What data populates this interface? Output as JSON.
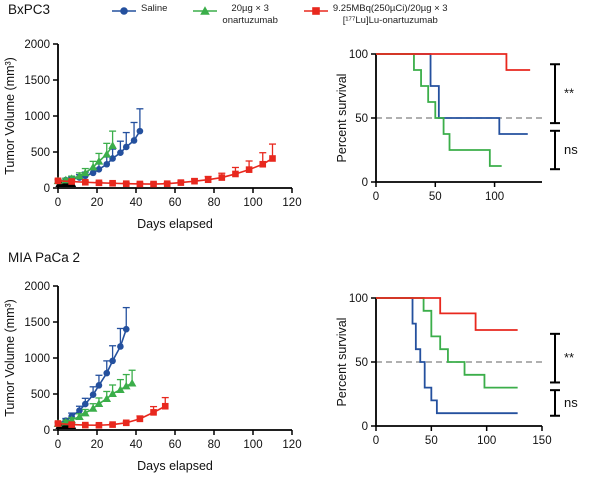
{
  "legend": {
    "items": [
      {
        "label": "Saline",
        "marker": "circle",
        "color": "#24509e"
      },
      {
        "label": "20µg × 3\nonartuzumab",
        "marker": "triangle",
        "color": "#3bae4a"
      },
      {
        "label": "9.25MBq(250µCi)/20µg × 3\n[¹⁷⁷Lu]Lu-onartuzumab",
        "marker": "square",
        "color": "#e8281e"
      }
    ]
  },
  "chart_data": [
    {
      "id": "bxpc3-tumor",
      "type": "line",
      "title": "BxPC3",
      "xlabel": "Days elapsed",
      "ylabel": "Tumor Volume (mm³)",
      "xlim": [
        0,
        120
      ],
      "ylim": [
        0,
        2000
      ],
      "xticks": [
        0,
        20,
        40,
        60,
        80,
        100,
        120
      ],
      "yticks": [
        0,
        500,
        1000,
        1500,
        2000
      ],
      "treatment_days": [
        1,
        4,
        7
      ],
      "series": [
        {
          "name": "Saline",
          "color": "#24509e",
          "marker": "circle",
          "x": [
            0,
            4,
            7,
            11,
            14,
            18,
            21,
            25,
            28,
            32,
            35,
            39,
            42
          ],
          "y": [
            100,
            110,
            125,
            145,
            170,
            210,
            260,
            330,
            410,
            490,
            570,
            660,
            790
          ],
          "err": [
            20,
            25,
            30,
            40,
            50,
            60,
            80,
            100,
            130,
            160,
            200,
            250,
            310
          ]
        },
        {
          "name": "Onartuzumab",
          "color": "#3bae4a",
          "marker": "triangle",
          "x": [
            0,
            4,
            7,
            11,
            14,
            18,
            21,
            25,
            28
          ],
          "y": [
            100,
            110,
            130,
            165,
            210,
            290,
            370,
            470,
            590
          ],
          "err": [
            20,
            25,
            35,
            45,
            60,
            80,
            110,
            150,
            200
          ]
        },
        {
          "name": "Lu-onartuzumab",
          "color": "#e8281e",
          "marker": "square",
          "x": [
            0,
            7,
            14,
            21,
            28,
            35,
            42,
            49,
            56,
            63,
            70,
            77,
            84,
            91,
            98,
            105,
            110
          ],
          "y": [
            100,
            90,
            80,
            72,
            66,
            60,
            56,
            55,
            60,
            75,
            95,
            115,
            145,
            195,
            255,
            330,
            410
          ],
          "err": [
            20,
            18,
            15,
            14,
            12,
            12,
            12,
            12,
            14,
            20,
            30,
            45,
            60,
            90,
            120,
            160,
            200
          ]
        }
      ]
    },
    {
      "id": "bxpc3-survival",
      "type": "step",
      "ylabel": "Percent survival",
      "xlim": [
        0,
        140
      ],
      "ylim": [
        0,
        100
      ],
      "xticks": [
        0,
        50,
        100
      ],
      "yticks": [
        0,
        50,
        100
      ],
      "median_line": 50,
      "series": [
        {
          "name": "Saline",
          "color": "#24509e",
          "points": [
            [
              0,
              100
            ],
            [
              46,
              100
            ],
            [
              46,
              75
            ],
            [
              53,
              75
            ],
            [
              53,
              50
            ],
            [
              104,
              50
            ],
            [
              104,
              37.5
            ],
            [
              128,
              37.5
            ]
          ]
        },
        {
          "name": "Onartuzumab",
          "color": "#3bae4a",
          "points": [
            [
              0,
              100
            ],
            [
              32,
              100
            ],
            [
              32,
              87.5
            ],
            [
              38,
              87.5
            ],
            [
              38,
              75
            ],
            [
              44,
              75
            ],
            [
              44,
              62.5
            ],
            [
              50,
              62.5
            ],
            [
              50,
              50
            ],
            [
              57,
              50
            ],
            [
              57,
              37.5
            ],
            [
              62,
              37.5
            ],
            [
              62,
              25
            ],
            [
              96,
              25
            ],
            [
              96,
              12.5
            ],
            [
              106,
              12.5
            ]
          ]
        },
        {
          "name": "Lu-onartuzumab",
          "color": "#e8281e",
          "points": [
            [
              0,
              100
            ],
            [
              110,
              100
            ],
            [
              110,
              87.5
            ],
            [
              130,
              87.5
            ]
          ]
        }
      ],
      "brackets": [
        {
          "label": "**",
          "y1": 92,
          "y2": 46
        },
        {
          "label": "ns",
          "y1": 40,
          "y2": 10
        }
      ]
    },
    {
      "id": "mia-tumor",
      "type": "line",
      "title": "MIA PaCa 2",
      "xlabel": "Days elapsed",
      "ylabel": "Tumor Volume (mm³)",
      "xlim": [
        0,
        120
      ],
      "ylim": [
        0,
        2000
      ],
      "xticks": [
        0,
        20,
        40,
        60,
        80,
        100,
        120
      ],
      "yticks": [
        0,
        500,
        1000,
        1500,
        2000
      ],
      "treatment_days": [
        1,
        4,
        7
      ],
      "series": [
        {
          "name": "Saline",
          "color": "#24509e",
          "marker": "circle",
          "x": [
            0,
            4,
            7,
            11,
            14,
            18,
            21,
            25,
            28,
            32,
            35
          ],
          "y": [
            90,
            130,
            190,
            270,
            360,
            490,
            620,
            790,
            960,
            1160,
            1400
          ],
          "err": [
            20,
            30,
            45,
            60,
            80,
            110,
            140,
            170,
            210,
            250,
            300
          ]
        },
        {
          "name": "Onartuzumab",
          "color": "#3bae4a",
          "marker": "triangle",
          "x": [
            0,
            4,
            7,
            11,
            14,
            18,
            21,
            25,
            28,
            32,
            35,
            38
          ],
          "y": [
            90,
            110,
            140,
            185,
            235,
            300,
            365,
            435,
            505,
            560,
            610,
            650
          ],
          "err": [
            20,
            25,
            30,
            40,
            50,
            65,
            80,
            100,
            120,
            140,
            160,
            180
          ]
        },
        {
          "name": "Lu-onartuzumab",
          "color": "#e8281e",
          "marker": "square",
          "x": [
            0,
            7,
            14,
            21,
            28,
            35,
            42,
            49,
            55
          ],
          "y": [
            90,
            75,
            68,
            66,
            75,
            100,
            155,
            245,
            330
          ],
          "err": [
            18,
            15,
            12,
            12,
            14,
            20,
            40,
            80,
            120
          ]
        }
      ]
    },
    {
      "id": "mia-survival",
      "type": "step",
      "ylabel": "Percent survival",
      "xlim": [
        0,
        150
      ],
      "ylim": [
        0,
        100
      ],
      "xticks": [
        0,
        50,
        100,
        150
      ],
      "yticks": [
        0,
        50,
        100
      ],
      "median_line": 50,
      "series": [
        {
          "name": "Saline",
          "color": "#24509e",
          "points": [
            [
              0,
              100
            ],
            [
              33,
              100
            ],
            [
              33,
              80
            ],
            [
              36,
              80
            ],
            [
              36,
              60
            ],
            [
              40,
              60
            ],
            [
              40,
              50
            ],
            [
              44,
              50
            ],
            [
              44,
              30
            ],
            [
              50,
              30
            ],
            [
              50,
              20
            ],
            [
              55,
              20
            ],
            [
              55,
              10
            ],
            [
              128,
              10
            ]
          ]
        },
        {
          "name": "Onartuzumab",
          "color": "#3bae4a",
          "points": [
            [
              0,
              100
            ],
            [
              43,
              100
            ],
            [
              43,
              90
            ],
            [
              50,
              90
            ],
            [
              50,
              70
            ],
            [
              58,
              70
            ],
            [
              58,
              60
            ],
            [
              65,
              60
            ],
            [
              65,
              50
            ],
            [
              80,
              50
            ],
            [
              80,
              40
            ],
            [
              98,
              40
            ],
            [
              98,
              30
            ],
            [
              128,
              30
            ]
          ]
        },
        {
          "name": "Lu-onartuzumab",
          "color": "#e8281e",
          "points": [
            [
              0,
              100
            ],
            [
              58,
              100
            ],
            [
              58,
              88
            ],
            [
              90,
              88
            ],
            [
              90,
              75
            ],
            [
              128,
              75
            ]
          ]
        }
      ],
      "brackets": [
        {
          "label": "**",
          "y1": 72,
          "y2": 34
        },
        {
          "label": "ns",
          "y1": 28,
          "y2": 8
        }
      ]
    }
  ]
}
